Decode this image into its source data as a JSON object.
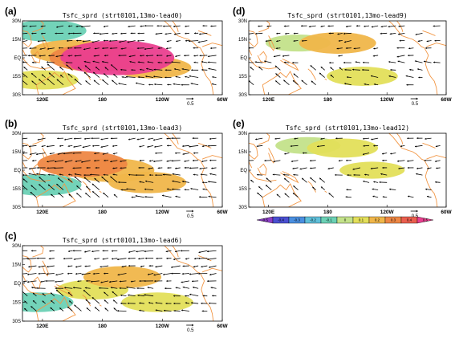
{
  "chart_data": [
    {
      "type": "map",
      "panel_label": "(a)",
      "title": "Tsfc_sprd (strt0101,13mo-lead0)",
      "ref_vector": "0.5",
      "yticks": [
        "30N",
        "15N",
        "EQ",
        "15S",
        "30S"
      ],
      "xticks": [
        "120E",
        "180",
        "120W",
        "60W"
      ],
      "field": [
        {
          "lon": 195,
          "lat": 0,
          "value": 0.45
        },
        {
          "lon": 175,
          "lat": 0,
          "value": 0.3
        },
        {
          "lon": 150,
          "lat": 5,
          "value": 0.2
        },
        {
          "lon": 120,
          "lat": -18,
          "value": 0.1
        },
        {
          "lon": 230,
          "lat": -8,
          "value": 0.15
        },
        {
          "lon": 125,
          "lat": 22,
          "value": -0.15
        }
      ]
    },
    {
      "type": "map",
      "panel_label": "(b)",
      "title": "Tsfc_sprd (strt0101,13mo-lead3)",
      "ref_vector": "0.5",
      "yticks": [
        "30N",
        "15N",
        "EQ",
        "15S",
        "30S"
      ],
      "xticks": [
        "120E",
        "180",
        "120W",
        "60W"
      ],
      "field": [
        {
          "lon": 190,
          "lat": 0,
          "value": 0.2
        },
        {
          "lon": 160,
          "lat": 5,
          "value": 0.25
        },
        {
          "lon": 225,
          "lat": -10,
          "value": 0.15
        },
        {
          "lon": 120,
          "lat": -12,
          "value": -0.15
        }
      ]
    },
    {
      "type": "map",
      "panel_label": "(c)",
      "title": "Tsfc_sprd (strt0101,13mo-lead6)",
      "ref_vector": "0.5",
      "yticks": [
        "30N",
        "15N",
        "EQ",
        "15S",
        "30S"
      ],
      "xticks": [
        "120E",
        "180",
        "120W",
        "60W"
      ],
      "field": [
        {
          "lon": 200,
          "lat": 5,
          "value": 0.15
        },
        {
          "lon": 170,
          "lat": -5,
          "value": 0.1
        },
        {
          "lon": 235,
          "lat": -15,
          "value": 0.1
        },
        {
          "lon": 115,
          "lat": -15,
          "value": -0.1
        }
      ]
    },
    {
      "type": "map",
      "panel_label": "(d)",
      "title": "Tsfc_sprd (strt0101,13mo-lead9)",
      "ref_vector": "0.5",
      "yticks": [
        "30N",
        "15N",
        "EQ",
        "15S",
        "30S"
      ],
      "xticks": [
        "120E",
        "180",
        "120W",
        "60W"
      ],
      "field": [
        {
          "lon": 190,
          "lat": 12,
          "value": 0.15
        },
        {
          "lon": 215,
          "lat": -15,
          "value": 0.1
        },
        {
          "lon": 150,
          "lat": 12,
          "value": -0.05
        }
      ]
    },
    {
      "type": "map",
      "panel_label": "(e)",
      "title": "Tsfc_sprd (strt0101,13mo-lead12)",
      "ref_vector": "0.5",
      "yticks": [
        "30N",
        "15N",
        "EQ",
        "15S",
        "30S"
      ],
      "xticks": [
        "120E",
        "180",
        "120W",
        "60W"
      ],
      "field": [
        {
          "lon": 195,
          "lat": 18,
          "value": 0.1
        },
        {
          "lon": 225,
          "lat": 0,
          "value": 0.05
        },
        {
          "lon": 160,
          "lat": 20,
          "value": -0.05
        }
      ]
    }
  ],
  "colorbar": {
    "labels": [
      "-0.5",
      "-0.4",
      "-0.3",
      "-0.2",
      "-0.1",
      "0",
      "0.1",
      "0.2",
      "0.3",
      "0.4",
      "0.5"
    ],
    "colors": [
      "#8c3ec7",
      "#4a4fd1",
      "#4a8fe0",
      "#5fbfd9",
      "#6bd1b5",
      "#c3e28a",
      "#e3df5a",
      "#f0b64a",
      "#ee8744",
      "#ea5e4e",
      "#ea3f8f"
    ]
  },
  "colors": {
    "coast": "#f29644",
    "frame": "#000000"
  }
}
